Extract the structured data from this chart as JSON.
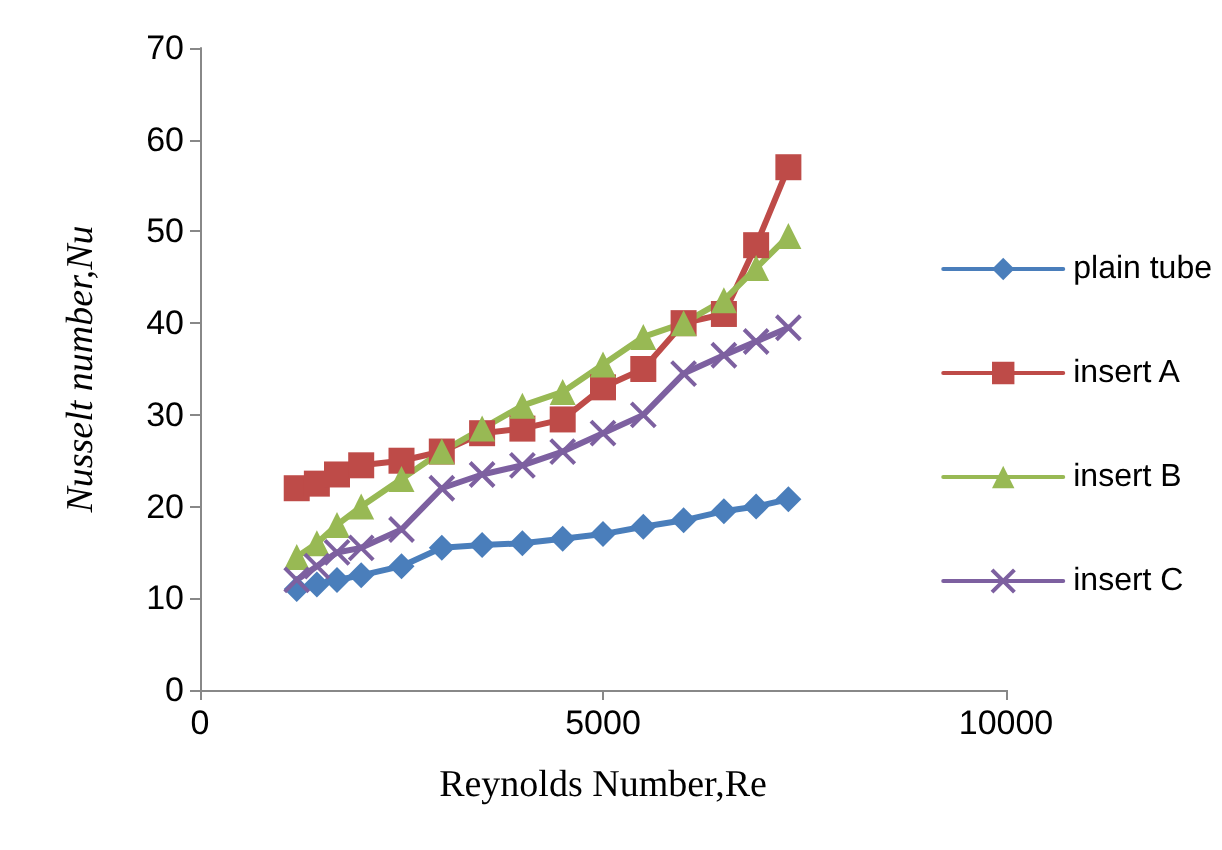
{
  "chart_data": {
    "type": "line",
    "xlabel": "Reynolds Number,Re",
    "ylabel": "Nusselt number,Nu",
    "xlim": [
      0,
      10000
    ],
    "xticks": [
      0,
      5000,
      10000
    ],
    "ylim": [
      0,
      70
    ],
    "yticks": [
      0,
      10,
      20,
      30,
      40,
      50,
      60,
      70
    ],
    "grid": false,
    "legend": "right",
    "line_style": "solid",
    "x": [
      1200,
      1450,
      1700,
      2000,
      2500,
      3000,
      3500,
      4000,
      4500,
      5000,
      5500,
      6000,
      6500,
      6900,
      7300
    ],
    "series": [
      {
        "name": "plain tube",
        "color": "#4a7ebb",
        "marker": "diamond",
        "values": [
          11,
          11.5,
          12,
          12.5,
          13.5,
          15.5,
          15.8,
          16,
          16.5,
          17,
          17.8,
          18.5,
          19.5,
          20,
          20.8
        ]
      },
      {
        "name": "insert A",
        "color": "#be4b48",
        "marker": "square",
        "values": [
          22,
          22.5,
          23.5,
          24.5,
          25,
          26,
          28,
          28.5,
          29.5,
          33,
          35,
          40,
          41,
          48.5,
          57
        ]
      },
      {
        "name": "insert B",
        "color": "#98b954",
        "marker": "triangle",
        "values": [
          14.5,
          16,
          18,
          20,
          23,
          26,
          28.5,
          31,
          32.5,
          35.5,
          38.5,
          40,
          42.5,
          46,
          49.5
        ]
      },
      {
        "name": "insert C",
        "color": "#7d60a0",
        "marker": "cross",
        "values": [
          12,
          13.5,
          15,
          15.5,
          17.5,
          22,
          23.5,
          24.5,
          26,
          28,
          30,
          34.5,
          36.5,
          38,
          39.5
        ]
      }
    ]
  }
}
